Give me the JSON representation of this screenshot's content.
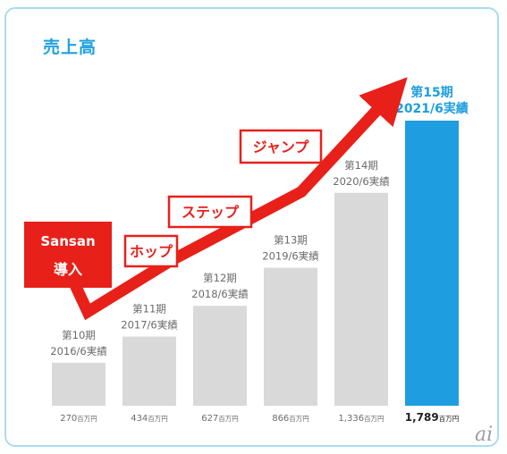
{
  "chart_data": {
    "type": "bar",
    "title": "売上高",
    "unit": "百万円",
    "categories": [
      {
        "period": "第10期",
        "date": "2016/6実績"
      },
      {
        "period": "第11期",
        "date": "2017/6実績"
      },
      {
        "period": "第12期",
        "date": "2018/6実績"
      },
      {
        "period": "第13期",
        "date": "2019/6実績"
      },
      {
        "period": "第14期",
        "date": "2020/6実績"
      },
      {
        "period": "第15期",
        "date": "2021/6実績"
      }
    ],
    "values": [
      270,
      434,
      627,
      866,
      1336,
      1789
    ],
    "value_labels": [
      "270",
      "434",
      "627",
      "866",
      "1,336",
      "1,789"
    ],
    "ylim": [
      0,
      1789
    ],
    "grid": false,
    "highlight_index": 5,
    "colors": {
      "bar": "#d9d9d9",
      "highlight_bar": "#1e9ee0",
      "arrow": "#e8201a",
      "callout_border": "#e8201a",
      "callout_text": "#e8201a",
      "title": "#1da1e0",
      "label": "#6b6b6b",
      "frame": "#a9dcef"
    },
    "annotations": {
      "start_box": {
        "line1": "Sansan",
        "line2": "導入"
      },
      "stages": [
        "ホップ",
        "ステップ",
        "ジャンプ"
      ]
    }
  },
  "watermark": "ai"
}
